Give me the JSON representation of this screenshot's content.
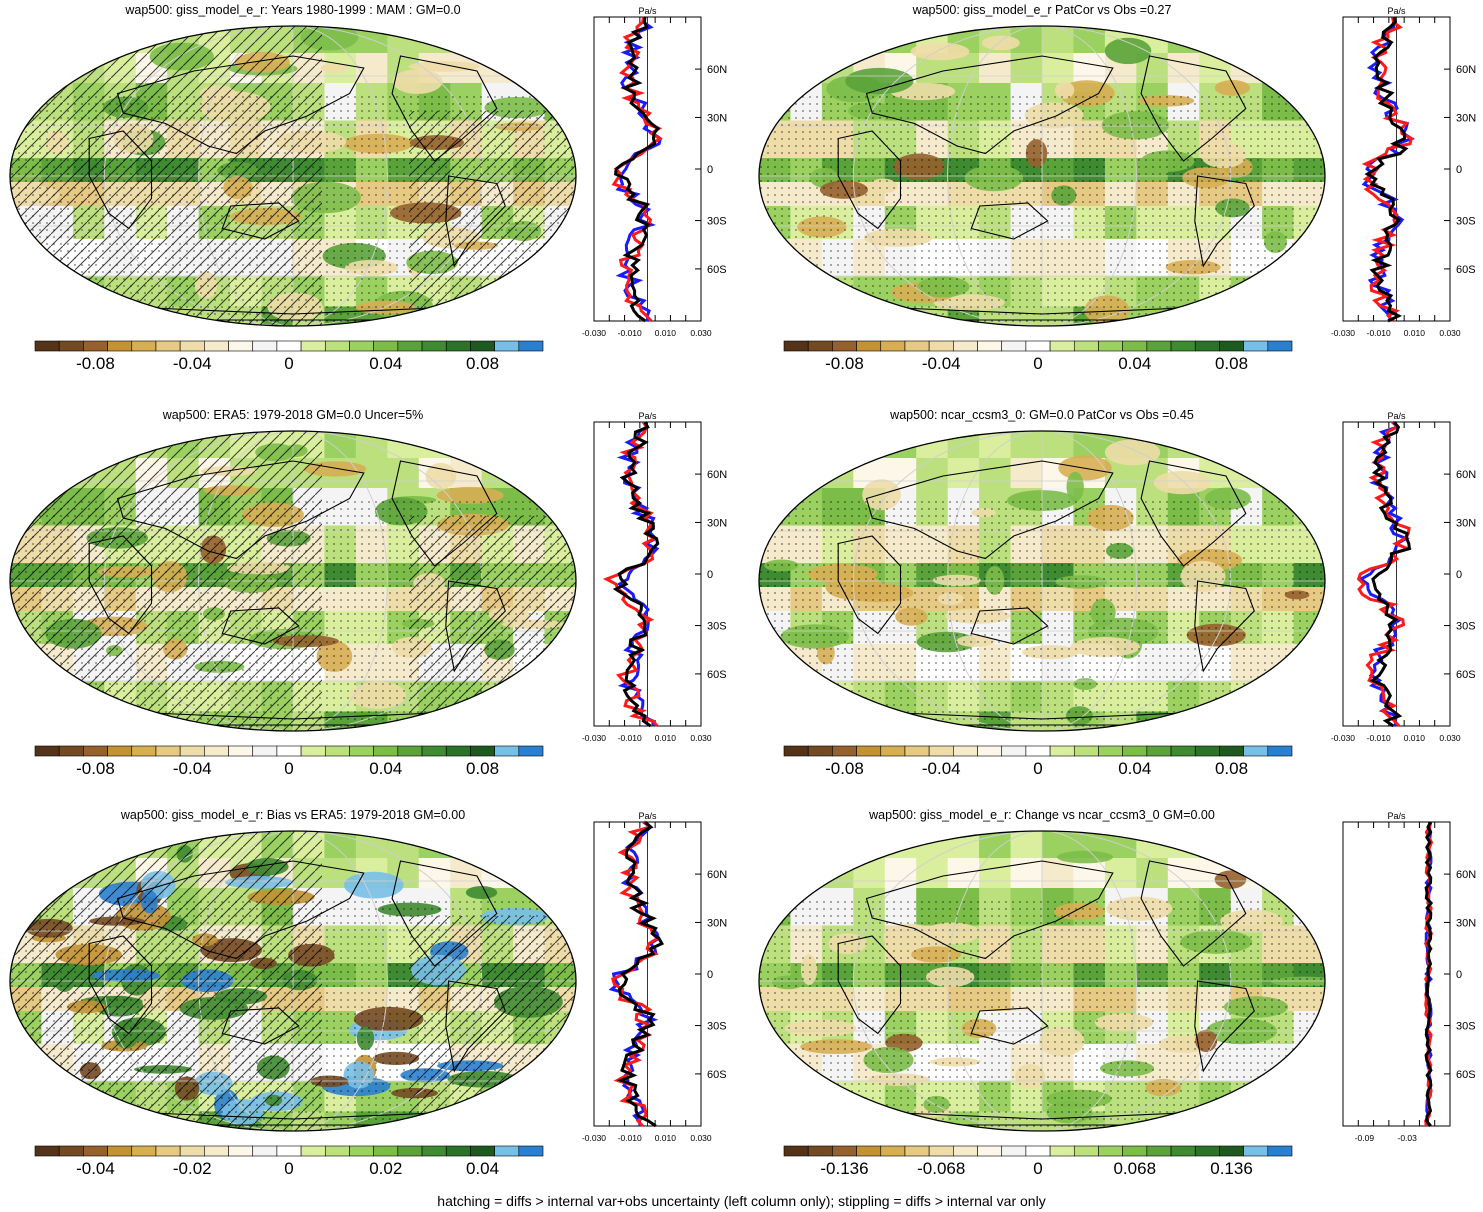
{
  "footer": "hatching = diffs > internal var+obs uncertainty (left column only); stippling = diffs > internal var only",
  "colorbar_colors": [
    "#553318",
    "#744a22",
    "#96612e",
    "#c29235",
    "#d7ae54",
    "#e6c983",
    "#eedda9",
    "#f5ebcc",
    "#fcf7e9",
    "#f4f4f4",
    "#ffffff",
    "#d9ef9d",
    "#bbe07d",
    "#9ad160",
    "#7cbd49",
    "#5aa33a",
    "#3f8b31",
    "#2d7229",
    "#1e5a20",
    "#78bfe8",
    "#2b7fcf"
  ],
  "profile_units": "Pa/s",
  "profile_lat_labels": [
    "60N",
    "30N",
    "0",
    "30S",
    "60S"
  ],
  "panels": [
    {
      "title": "wap500: giss_model_e_r: Years 1980-1999 : MAM : GM=0.0",
      "hatch": true,
      "stipple": true,
      "cb_labels": [
        "-0.08",
        "-0.04",
        "0",
        "0.04",
        "0.08"
      ],
      "profile_ticks": [
        "-0.030",
        "-0.010",
        "0.010",
        "0.030"
      ],
      "profile_xrange": [
        -0.03,
        0.03
      ]
    },
    {
      "title": "wap500: giss_model_e_r PatCor vs Obs =0.27",
      "hatch": false,
      "stipple": true,
      "cb_labels": [
        "-0.08",
        "-0.04",
        "0",
        "0.04",
        "0.08"
      ],
      "profile_ticks": [
        "-0.030",
        "-0.010",
        "0.010",
        "0.030"
      ],
      "profile_xrange": [
        -0.03,
        0.03
      ]
    },
    {
      "title": "wap500: ERA5: 1979-2018 GM=0.0 Uncer=5%",
      "hatch": true,
      "stipple": true,
      "cb_labels": [
        "-0.08",
        "-0.04",
        "0",
        "0.04",
        "0.08"
      ],
      "profile_ticks": [
        "-0.030",
        "-0.010",
        "0.010",
        "0.030"
      ],
      "profile_xrange": [
        -0.03,
        0.03
      ]
    },
    {
      "title": "wap500: ncar_ccsm3_0: GM=0.0 PatCor vs Obs =0.45",
      "hatch": false,
      "stipple": true,
      "cb_labels": [
        "-0.08",
        "-0.04",
        "0",
        "0.04",
        "0.08"
      ],
      "profile_ticks": [
        "-0.030",
        "-0.010",
        "0.010",
        "0.030"
      ],
      "profile_xrange": [
        -0.03,
        0.03
      ]
    },
    {
      "title": "wap500: giss_model_e_r: Bias vs ERA5: 1979-2018 GM=0.00",
      "hatch": true,
      "stipple": true,
      "cb_labels": [
        "-0.04",
        "-0.02",
        "0",
        "0.02",
        "0.04"
      ],
      "profile_ticks": [
        "-0.030",
        "-0.010",
        "0.010",
        "0.030"
      ],
      "profile_xrange": [
        -0.03,
        0.03
      ]
    },
    {
      "title": "wap500: giss_model_e_r: Change vs ncar_ccsm3_0 GM=0.00",
      "hatch": false,
      "stipple": true,
      "cb_labels": [
        "-0.136",
        "-0.068",
        "0",
        "0.068",
        "0.136"
      ],
      "profile_ticks": [
        "-0.09",
        "-0.03"
      ],
      "profile_xrange": [
        -0.12,
        0.03
      ]
    }
  ]
}
